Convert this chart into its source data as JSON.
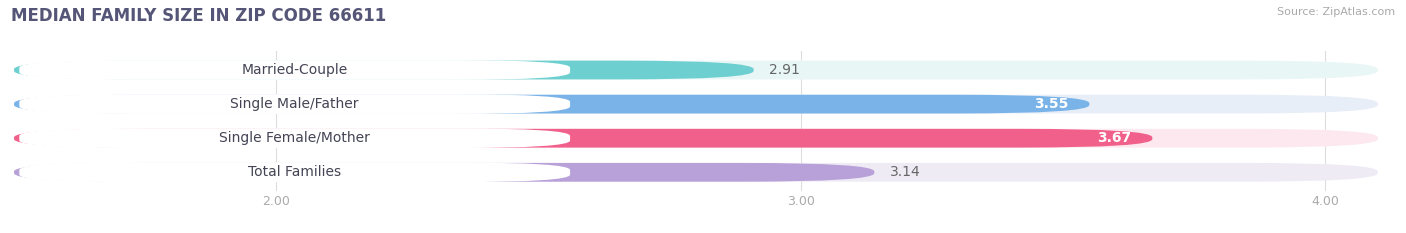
{
  "title": "MEDIAN FAMILY SIZE IN ZIP CODE 66611",
  "source": "Source: ZipAtlas.com",
  "categories": [
    "Married-Couple",
    "Single Male/Father",
    "Single Female/Mother",
    "Total Families"
  ],
  "values": [
    2.91,
    3.55,
    3.67,
    3.14
  ],
  "bar_colors": [
    "#6dcfcf",
    "#7ab3e8",
    "#f0608a",
    "#b8a0d8"
  ],
  "bar_bg_colors": [
    "#e8f6f6",
    "#e8eef8",
    "#fce8ee",
    "#eeebf5"
  ],
  "label_pill_colors": [
    "#6dcfcf",
    "#7ab3e8",
    "#f0608a",
    "#b8a0d8"
  ],
  "value_in_bar_colors": [
    "#555555",
    "#ffffff",
    "#ffffff",
    "#555555"
  ],
  "xlim_min": 1.5,
  "xlim_max": 4.1,
  "xticks": [
    2.0,
    3.0,
    4.0
  ],
  "xtick_labels": [
    "2.00",
    "3.00",
    "4.00"
  ],
  "value_fontsize": 10,
  "label_fontsize": 10,
  "title_fontsize": 12,
  "bar_height": 0.55,
  "bar_gap": 1.0,
  "figsize": [
    14.06,
    2.33
  ],
  "dpi": 100,
  "bg_color": "#ffffff",
  "title_color": "#555577",
  "source_color": "#aaaaaa",
  "grid_color": "#dddddd",
  "tick_color": "#aaaaaa"
}
